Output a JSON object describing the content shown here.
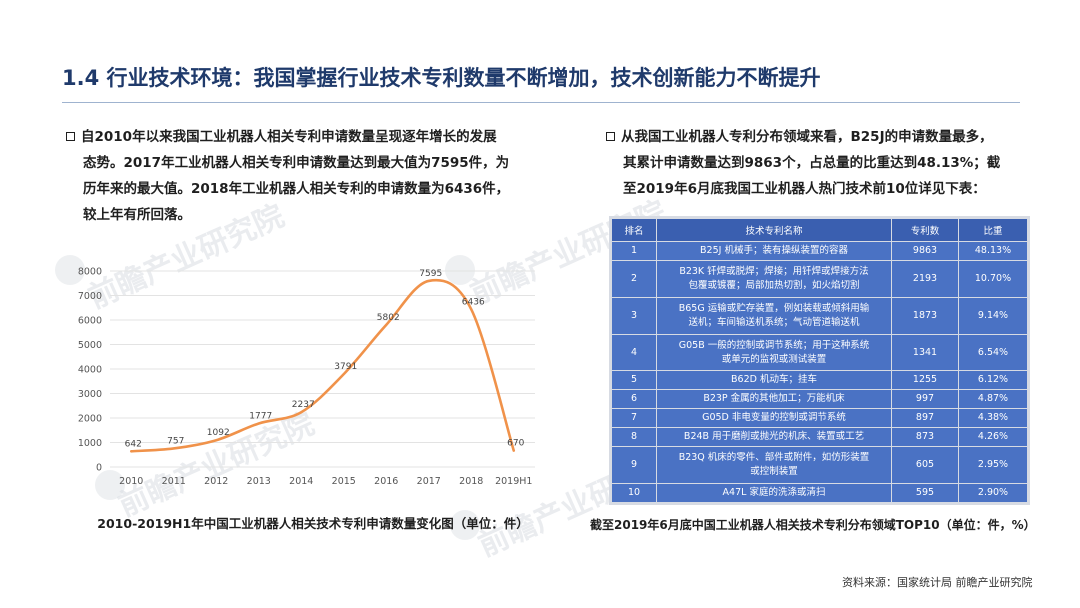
{
  "header": {
    "title": "1.4 行业技术环境：我国掌握行业技术专利数量不断增加，技术创新能力不断提升"
  },
  "left_text": {
    "line1": "自2010年以来我国工业机器人相关专利申请数量呈现逐年增长的发展",
    "line2": "态势。2017年工业机器人相关专利申请数量达到最大值为7595件，为",
    "line3": "历年来的最大值。2018年工业机器人相关专利的申请数量为6436件，",
    "line4": "较上年有所回落。"
  },
  "right_text": {
    "line1": "从我国工业机器人专利分布领域来看，B25J的申请数量最多，",
    "line2": "其累计申请数量达到9863个，占总量的比重达到48.13%；截",
    "line3": "至2019年6月底我国工业机器人热门技术前10位详见下表："
  },
  "watermark": {
    "text": "前瞻产业研究院"
  },
  "chart_data": {
    "type": "line",
    "categories": [
      "2010",
      "2011",
      "2012",
      "2013",
      "2014",
      "2015",
      "2016",
      "2017",
      "2018",
      "2019H1"
    ],
    "series": [
      {
        "values": [
          642,
          757,
          1092,
          1777,
          2237,
          3791,
          5802,
          7595,
          6436,
          670
        ],
        "color": "#f0924a"
      }
    ],
    "y_ticks": [
      "0",
      "1000",
      "2000",
      "3000",
      "4000",
      "5000",
      "6000",
      "7000",
      "8000"
    ],
    "ylim": [
      0,
      8000
    ],
    "grid": true,
    "smooth": true,
    "caption": "2010-2019H1年中国工业机器人相关技术专利申请数量变化图（单位：件）"
  },
  "table": {
    "headers": [
      "排名",
      "技术专利名称",
      "专利数",
      "比重"
    ],
    "rows": [
      {
        "rank": "1",
        "name1": "B25J 机械手；装有操纵装置的容器",
        "name2": "",
        "count": "9863",
        "share": "48.13%"
      },
      {
        "rank": "2",
        "name1": "B23K 钎焊或脱焊；焊接；用钎焊或焊接方法",
        "name2": "包覆或镀覆；局部加热切割，如火焰切割",
        "count": "2193",
        "share": "10.70%"
      },
      {
        "rank": "3",
        "name1": "B65G 运输或贮存装置，例如装载或倾斜用输",
        "name2": "送机；车间输送机系统；气动管道输送机",
        "count": "1873",
        "share": "9.14%"
      },
      {
        "rank": "4",
        "name1": "G05B 一般的控制或调节系统；用于这种系统",
        "name2": "或单元的监视或测试装置",
        "count": "1341",
        "share": "6.54%"
      },
      {
        "rank": "5",
        "name1": "B62D 机动车；挂车",
        "name2": "",
        "count": "1255",
        "share": "6.12%"
      },
      {
        "rank": "6",
        "name1": "B23P 金属的其他加工；万能机床",
        "name2": "",
        "count": "997",
        "share": "4.87%"
      },
      {
        "rank": "7",
        "name1": "G05D 非电变量的控制或调节系统",
        "name2": "",
        "count": "897",
        "share": "4.38%"
      },
      {
        "rank": "8",
        "name1": "B24B 用于磨削或抛光的机床、装置或工艺",
        "name2": "",
        "count": "873",
        "share": "4.26%"
      },
      {
        "rank": "9",
        "name1": "B23Q 机床的零件、部件或附件，如仿形装置",
        "name2": "或控制装置",
        "count": "605",
        "share": "2.95%"
      },
      {
        "rank": "10",
        "name1": "A47L 家庭的洗涤或清扫",
        "name2": "",
        "count": "595",
        "share": "2.90%"
      }
    ],
    "caption": "截至2019年6月底中国工业机器人相关技术专利分布领域TOP10（单位：件，%）"
  },
  "footer": {
    "source": "资料来源：国家统计局 前瞻产业研究院"
  }
}
